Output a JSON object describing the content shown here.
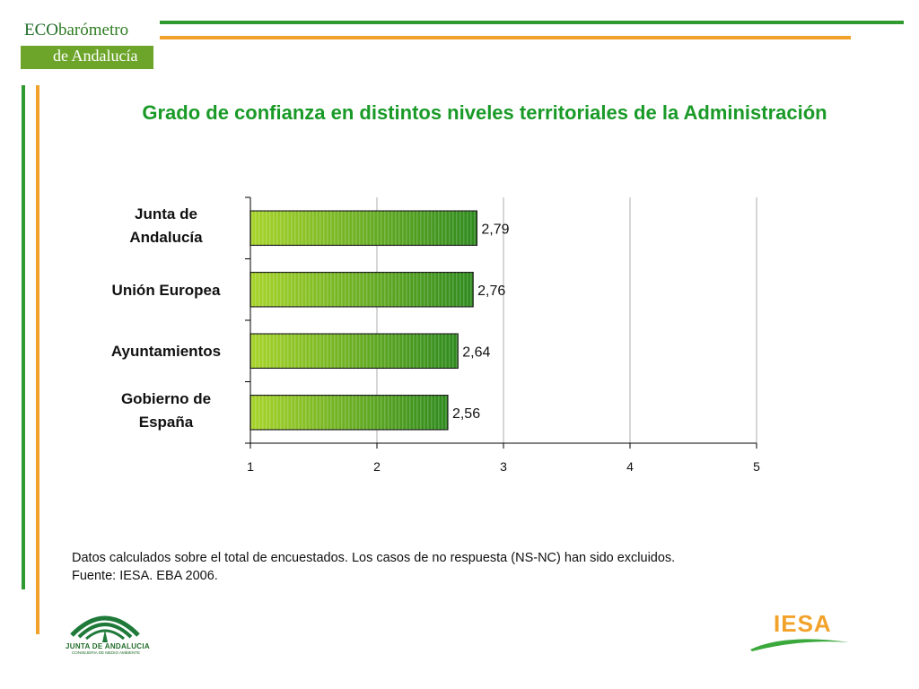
{
  "logo": {
    "eco": "ECO",
    "barometro": "barómetro",
    "andalucia": "de Andalucía"
  },
  "title": "Grado de confianza en distintos niveles territoriales de la Administración",
  "chart_data": {
    "type": "bar",
    "orientation": "horizontal",
    "categories": [
      [
        "Junta de",
        "Andalucía"
      ],
      [
        "Unión Europea"
      ],
      [
        "Ayuntamientos"
      ],
      [
        "Gobierno de",
        "España"
      ]
    ],
    "values": [
      2.79,
      2.76,
      2.64,
      2.56
    ],
    "value_labels": [
      "2,79",
      "2,76",
      "2,64",
      "2,56"
    ],
    "xlim": [
      1,
      5
    ],
    "xticks": [
      1,
      2,
      3,
      4,
      5
    ],
    "xtick_labels": [
      "1",
      "2",
      "3",
      "4",
      "5"
    ],
    "grid": true,
    "bar_colors": {
      "light": "#a8d42a",
      "dark": "#2e8a1d"
    }
  },
  "footer": {
    "note": "Datos calculados sobre el total de encuestados. Los casos de no respuesta (NS-NC) han sido excluidos.",
    "source": "Fuente: IESA. EBA 2006."
  },
  "logos": {
    "junta": "JUNTA DE ANDALUCIA",
    "junta_sub": "CONSEJERIA DE MEDIO AMBIENTE",
    "iesa": "IESA"
  },
  "colors": {
    "green": "#2f9a2f",
    "orange": "#f2a22a",
    "title": "#199a27"
  }
}
